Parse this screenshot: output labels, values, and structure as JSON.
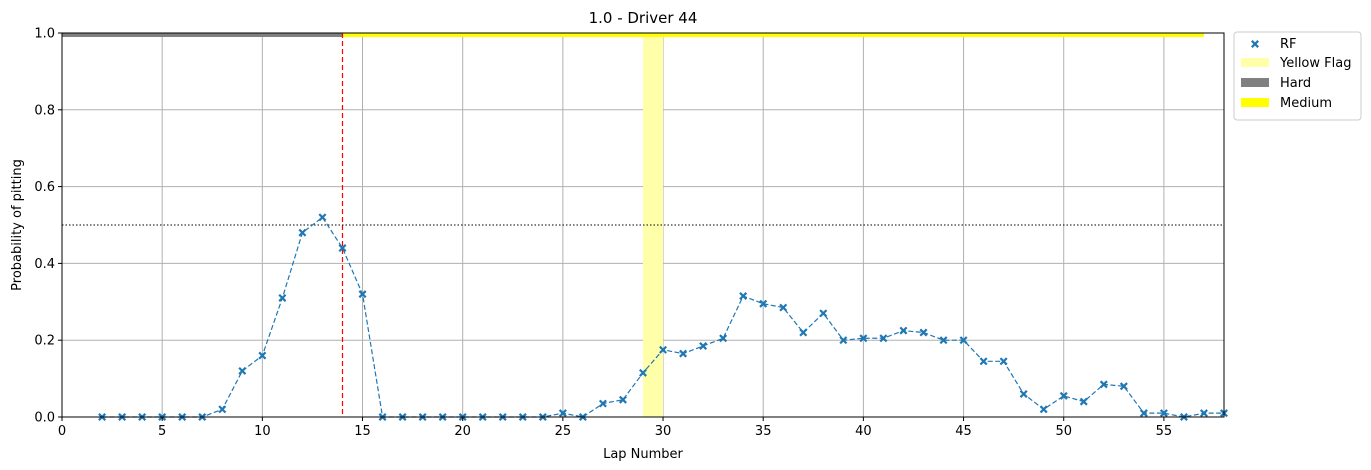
{
  "chart_data": {
    "type": "scatter",
    "title": "1.0 - Driver 44",
    "xlabel": "Lap Number",
    "ylabel": "Probability of pitting",
    "xlim": [
      0,
      58
    ],
    "ylim": [
      0,
      1
    ],
    "xticks": [
      0,
      5,
      10,
      15,
      20,
      25,
      30,
      35,
      40,
      45,
      50,
      55
    ],
    "yticks": [
      0.0,
      0.2,
      0.4,
      0.6,
      0.8,
      1.0
    ],
    "yticklabels": [
      "0.0",
      "0.2",
      "0.4",
      "0.6",
      "0.8",
      "1.0"
    ],
    "grid": true,
    "legend_position": "outside-top-right",
    "series": [
      {
        "name": "RF",
        "color": "#1f77b4",
        "marker": "x",
        "line_style": "dashed",
        "x": [
          2,
          3,
          4,
          5,
          6,
          7,
          8,
          9,
          10,
          11,
          12,
          13,
          14,
          15,
          16,
          17,
          18,
          19,
          20,
          21,
          22,
          23,
          24,
          25,
          26,
          27,
          28,
          29,
          30,
          31,
          32,
          33,
          34,
          35,
          36,
          37,
          38,
          39,
          40,
          41,
          42,
          43,
          44,
          45,
          46,
          47,
          48,
          49,
          50,
          51,
          52,
          53,
          54,
          55,
          56,
          57,
          58
        ],
        "y": [
          0.0,
          0.0,
          0.0,
          0.0,
          0.0,
          0.0,
          0.02,
          0.12,
          0.16,
          0.31,
          0.48,
          0.52,
          0.44,
          0.32,
          0.0,
          0.0,
          0.0,
          0.0,
          0.0,
          0.0,
          0.0,
          0.0,
          0.0,
          0.01,
          0.0,
          0.035,
          0.045,
          0.115,
          0.175,
          0.165,
          0.185,
          0.205,
          0.315,
          0.295,
          0.285,
          0.22,
          0.27,
          0.2,
          0.205,
          0.205,
          0.225,
          0.22,
          0.2,
          0.2,
          0.145,
          0.145,
          0.06,
          0.02,
          0.055,
          0.04,
          0.085,
          0.08,
          0.01,
          0.01,
          0.0,
          0.01,
          0.01
        ]
      }
    ],
    "yellow_flag": {
      "name": "Yellow Flag",
      "color": "#ffffaa",
      "x_start": 29,
      "x_end": 30
    },
    "tyres": [
      {
        "name": "Hard",
        "color": "#808080",
        "x_start": 0,
        "x_end": 14
      },
      {
        "name": "Medium",
        "color": "#ffff00",
        "x_start": 14,
        "x_end": 57
      }
    ],
    "pit_line": {
      "x": 14,
      "color": "#ff0000"
    },
    "threshold": {
      "y": 0.5,
      "color": "#000000"
    }
  }
}
